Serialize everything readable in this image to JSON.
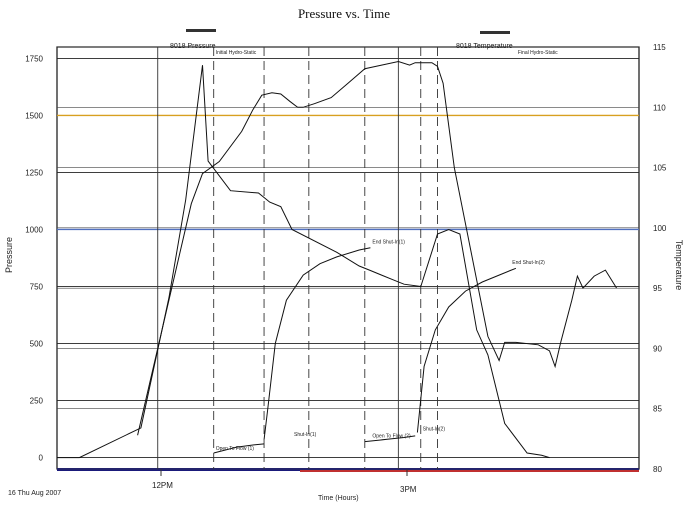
{
  "chart_data": {
    "type": "line",
    "title": "Pressure vs. Time",
    "xlabel": "Time (Hours)",
    "ylabel": "Pressure",
    "y2label": "Temperature",
    "date_label": "16 Thu Aug 2007",
    "x_ticks": [
      "12PM",
      "3PM"
    ],
    "ylim": [
      -50,
      1800
    ],
    "y_ticks": [
      0,
      250,
      500,
      750,
      1000,
      1250,
      1500,
      1750
    ],
    "y2lim": [
      80,
      115
    ],
    "y2_ticks": [
      80,
      85,
      90,
      95,
      100,
      105,
      110,
      115
    ],
    "grid": true,
    "legend": [
      {
        "name": "8018 Pressure",
        "position": "top-left"
      },
      {
        "name": "8018 Temperature",
        "position": "top-right"
      }
    ],
    "series": [
      {
        "name": "8018 Pressure",
        "axis": "left",
        "points": [
          [
            0.0,
            0
          ],
          [
            0.2,
            0
          ],
          [
            0.75,
            130
          ],
          [
            1.0,
            700
          ],
          [
            1.15,
            1130
          ],
          [
            1.3,
            1720
          ],
          [
            1.35,
            1300
          ],
          [
            1.55,
            1170
          ],
          [
            1.8,
            1160
          ],
          [
            1.9,
            1120
          ],
          [
            2.0,
            1100
          ],
          [
            2.1,
            1000
          ],
          [
            2.5,
            900
          ],
          [
            2.7,
            840
          ],
          [
            2.8,
            820
          ],
          [
            2.9,
            800
          ],
          [
            3.0,
            780
          ],
          [
            3.1,
            760
          ],
          [
            3.25,
            750
          ],
          [
            3.4,
            980
          ],
          [
            3.5,
            1000
          ],
          [
            3.6,
            980
          ],
          [
            3.75,
            560
          ],
          [
            3.85,
            450
          ],
          [
            4.0,
            150
          ],
          [
            4.2,
            20
          ],
          [
            4.33,
            10
          ],
          [
            4.4,
            0
          ]
        ]
      },
      {
        "name": "8018 Temperature",
        "axis": "right",
        "points": [
          [
            0.72,
            82.8
          ],
          [
            1.0,
            94
          ],
          [
            1.2,
            102
          ],
          [
            1.3,
            104.5
          ],
          [
            1.45,
            105.5
          ],
          [
            1.65,
            108
          ],
          [
            1.75,
            109.8
          ],
          [
            1.83,
            111
          ],
          [
            1.92,
            111.2
          ],
          [
            2.0,
            111.1
          ],
          [
            2.08,
            110.5
          ],
          [
            2.15,
            110
          ],
          [
            2.2,
            110
          ],
          [
            2.3,
            110.3
          ],
          [
            2.45,
            110.8
          ],
          [
            2.6,
            112
          ],
          [
            2.75,
            113.2
          ],
          [
            2.9,
            113.5
          ],
          [
            3.05,
            113.8
          ],
          [
            3.15,
            113.5
          ],
          [
            3.2,
            113.7
          ],
          [
            3.35,
            113.7
          ],
          [
            3.4,
            113.4
          ],
          [
            3.45,
            112
          ],
          [
            3.55,
            105
          ],
          [
            3.7,
            98
          ],
          [
            3.85,
            91
          ],
          [
            3.95,
            89
          ],
          [
            4.0,
            90.5
          ],
          [
            4.1,
            90.5
          ],
          [
            4.3,
            90.3
          ],
          [
            4.4,
            89.8
          ],
          [
            4.45,
            88.5
          ],
          [
            4.5,
            90.5
          ],
          [
            4.6,
            94
          ],
          [
            4.65,
            96
          ],
          [
            4.7,
            95
          ],
          [
            4.8,
            96
          ],
          [
            4.9,
            96.5
          ],
          [
            5.0,
            95
          ]
        ]
      },
      {
        "name": "",
        "axis": "left",
        "points": [
          [
            1.4,
            20
          ],
          [
            1.6,
            45
          ],
          [
            1.75,
            55
          ],
          [
            1.85,
            60
          ]
        ]
      },
      {
        "name": "",
        "axis": "left",
        "points": [
          [
            1.85,
            80
          ],
          [
            1.88,
            200
          ],
          [
            1.95,
            500
          ],
          [
            2.05,
            690
          ],
          [
            2.2,
            800
          ],
          [
            2.35,
            850
          ],
          [
            2.5,
            880
          ],
          [
            2.7,
            910
          ],
          [
            2.8,
            920
          ]
        ]
      },
      {
        "name": "",
        "axis": "left",
        "points": [
          [
            2.75,
            70
          ],
          [
            2.95,
            80
          ],
          [
            3.1,
            88
          ],
          [
            3.2,
            95
          ]
        ]
      },
      {
        "name": "",
        "axis": "left",
        "points": [
          [
            3.22,
            110
          ],
          [
            3.28,
            400
          ],
          [
            3.38,
            560
          ],
          [
            3.5,
            660
          ],
          [
            3.65,
            730
          ],
          [
            3.8,
            770
          ],
          [
            3.95,
            800
          ],
          [
            4.05,
            820
          ],
          [
            4.1,
            830
          ]
        ]
      }
    ],
    "annotations": [
      {
        "text": "Initial Hydro-Static",
        "x": 1.4,
        "y": 1760
      },
      {
        "text": "Open To Flow (1)",
        "x": 1.4,
        "y": 25
      },
      {
        "text": "Shut-In(1)",
        "x": 2.1,
        "y": 85
      },
      {
        "text": "End Shut-In(1)",
        "x": 2.8,
        "y": 930
      },
      {
        "text": "Open To Flow (2)",
        "x": 2.8,
        "y": 80
      },
      {
        "text": "Shut-In(2)",
        "x": 3.25,
        "y": 110
      },
      {
        "text": "End Shut-In(2)",
        "x": 4.05,
        "y": 840
      },
      {
        "text": "Final Hydro-Static",
        "x": 4.1,
        "y": 1760
      }
    ],
    "vertical_lines_dashed": [
      1.4,
      1.85,
      2.25,
      2.75,
      3.25,
      3.4
    ],
    "vertical_lines_solid": [
      0.9,
      3.05
    ]
  }
}
